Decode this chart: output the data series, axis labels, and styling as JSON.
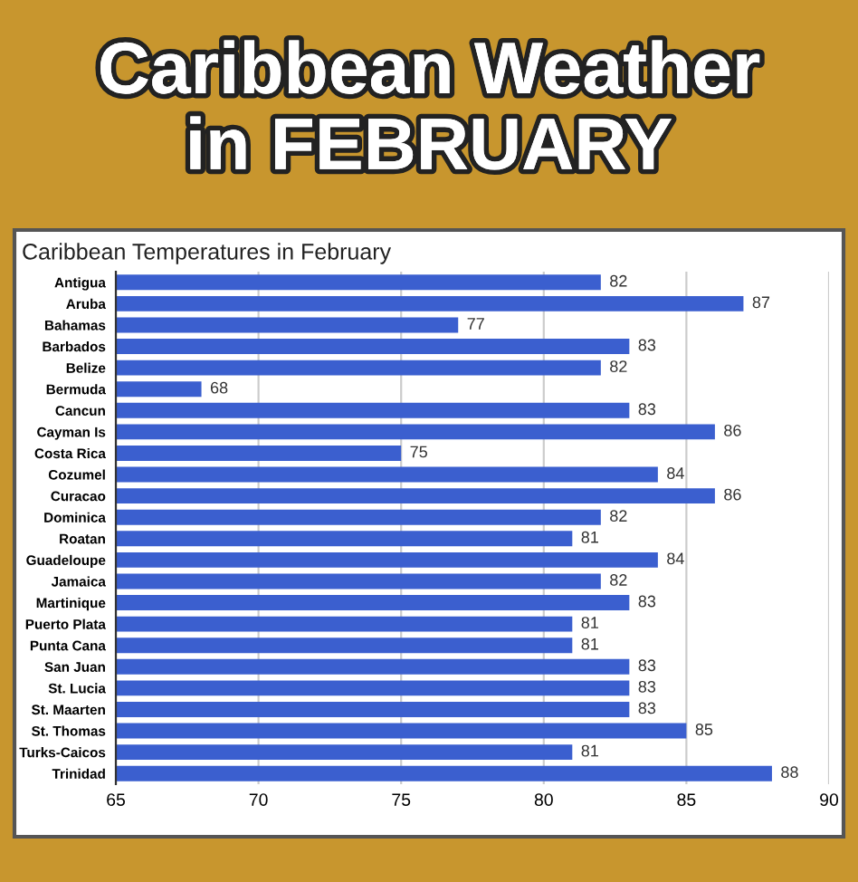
{
  "chart_data": {
    "type": "bar",
    "orientation": "horizontal",
    "title": "Caribbean Weather\nin FEBRUARY",
    "subtitle": "Caribbean Temperatures in February",
    "categories": [
      "Antigua",
      "Aruba",
      "Bahamas",
      "Barbados",
      "Belize",
      "Bermuda",
      "Cancun",
      "Cayman Is",
      "Costa Rica",
      "Cozumel",
      "Curacao",
      "Dominica",
      "Roatan",
      "Guadeloupe",
      "Jamaica",
      "Martinique",
      "Puerto Plata",
      "Punta Cana",
      "San Juan",
      "St. Lucia",
      "St. Maarten",
      "St. Thomas",
      "Turks-Caicos",
      "Trinidad"
    ],
    "values": [
      82,
      87,
      77,
      83,
      82,
      68,
      83,
      86,
      75,
      84,
      86,
      82,
      81,
      84,
      82,
      83,
      81,
      81,
      83,
      83,
      83,
      85,
      81,
      88
    ],
    "color": "#3b5fcf",
    "xlim": [
      65,
      90
    ],
    "xticks": [
      65,
      70,
      75,
      80,
      85,
      90
    ],
    "grid": "x",
    "data_labels": true,
    "legend": false
  }
}
